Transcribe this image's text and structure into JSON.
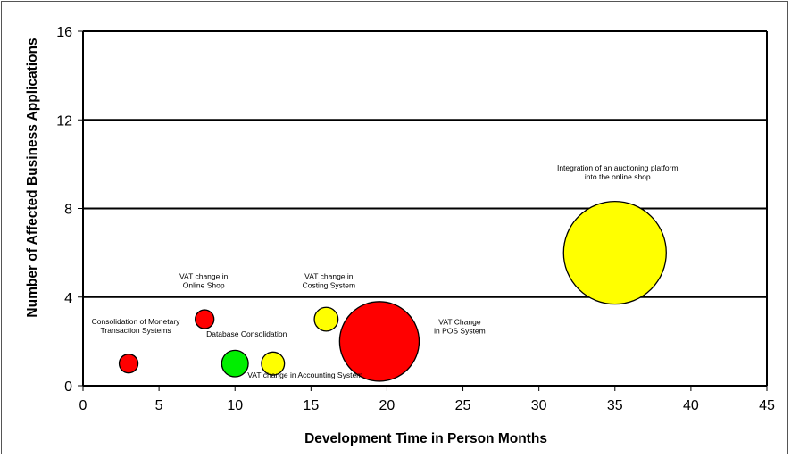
{
  "chart_data": {
    "type": "scatter",
    "subtype": "bubble",
    "title": "",
    "xlabel": "Development Time in Person Months",
    "ylabel": "Number of Affected Business Applications",
    "xlim": [
      0,
      45
    ],
    "ylim": [
      0,
      16
    ],
    "xticks": [
      "0",
      "5",
      "10",
      "15",
      "20",
      "25",
      "30",
      "35",
      "40",
      "45"
    ],
    "yticks": [
      "0",
      "4",
      "8",
      "12",
      "16"
    ],
    "grid": "horizontal",
    "legend": "none",
    "colors": {
      "red": "#ff0000",
      "green": "#00ee00",
      "yellow": "#ffff00",
      "outline": "#000000"
    },
    "bubbles": [
      {
        "label": [
          "Consolidation  of Monetary",
          "Transaction  Systems"
        ],
        "x": 3,
        "y": 1,
        "size": 1,
        "color": "#ff0000"
      },
      {
        "label": [
          "VAT change  in",
          "Online Shop"
        ],
        "x": 8,
        "y": 3,
        "size": 1,
        "color": "#ff0000"
      },
      {
        "label": [
          "Database  Consolidation"
        ],
        "x": 10,
        "y": 1,
        "size": 2,
        "color": "#00ee00"
      },
      {
        "label": [
          "VAT change  in Accounting    System"
        ],
        "x": 12.5,
        "y": 1,
        "size": 1.5,
        "color": "#ffff00"
      },
      {
        "label": [
          "VAT change  in",
          "Costing System"
        ],
        "x": 16,
        "y": 3,
        "size": 1.6,
        "color": "#ffff00"
      },
      {
        "label": [
          "VAT Change",
          "in POS  System"
        ],
        "x": 19.5,
        "y": 2,
        "size": 18,
        "color": "#ff0000"
      },
      {
        "label": [
          "Integration  of an  auctioning  platform",
          "into the online shop"
        ],
        "x": 35,
        "y": 6,
        "size": 30,
        "color": "#ffff00"
      }
    ]
  }
}
